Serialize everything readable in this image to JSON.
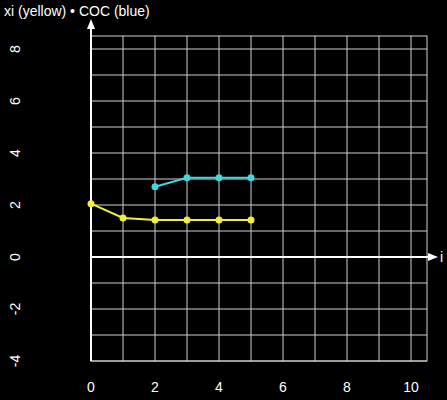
{
  "chart_data": {
    "type": "line",
    "title": "xi (yellow) • COC (blue)",
    "xlabel": "i",
    "x": [
      0,
      1,
      2,
      3,
      4,
      5
    ],
    "series": [
      {
        "name": "xi",
        "color": "#f2ee3a",
        "marker": "circle",
        "values": [
          2.05,
          1.5,
          1.42,
          1.42,
          1.42,
          1.42
        ]
      },
      {
        "name": "COC",
        "color": "#3fd8e0",
        "marker": "circle",
        "values": [
          null,
          null,
          2.7,
          3.05,
          3.05,
          3.05
        ]
      }
    ],
    "xlim": [
      0,
      10.5
    ],
    "xticks": [
      0,
      2,
      4,
      6,
      8,
      10
    ],
    "ylim": [
      -4,
      8.5
    ],
    "yticks": [
      -4,
      -2,
      0,
      2,
      4,
      6,
      8
    ],
    "grid": true
  }
}
